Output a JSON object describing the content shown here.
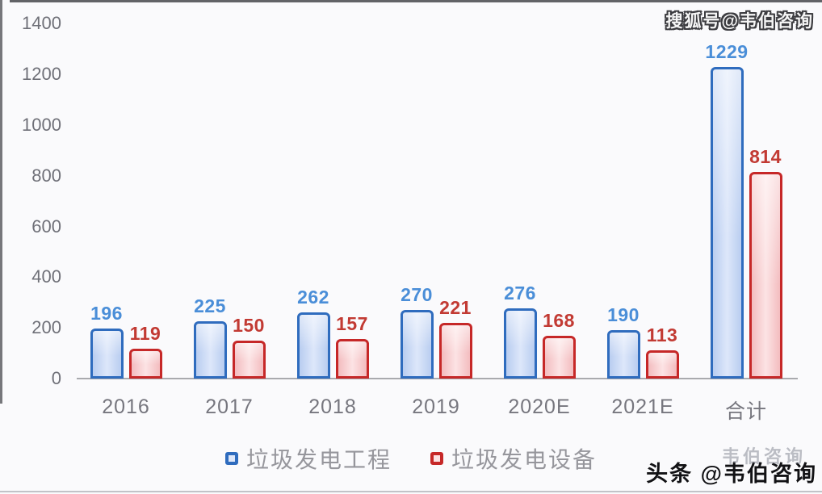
{
  "watermarks": {
    "top_right": "搜狐号@韦伯咨询",
    "bottom_right": "头条 @韦伯咨询",
    "bottom_right_ghost": "韦伯咨询"
  },
  "colors": {
    "series1_border": "#2f6cbe",
    "series1_fill_light": "#dde7fa",
    "series1_fill_dark": "#b9cdf0",
    "series1_label": "#4a8ed8",
    "series2_border": "#c62828",
    "series2_fill_light": "#fce3e4",
    "series2_fill_dark": "#f3bcbf",
    "series2_label": "#c23a33",
    "axis_text": "#6f7078",
    "legend_text": "#96969c",
    "baseline": "#a9aaae"
  },
  "chart_data": {
    "type": "bar",
    "title": "",
    "xlabel": "",
    "ylabel": "",
    "categories": [
      "2016",
      "2017",
      "2018",
      "2019",
      "2020E",
      "2021E",
      "合计"
    ],
    "series": [
      {
        "name": "垃圾发电工程",
        "color": "#2f6cbe",
        "values": [
          196,
          225,
          262,
          270,
          276,
          190,
          1229
        ]
      },
      {
        "name": "垃圾发电设备",
        "color": "#c62828",
        "values": [
          119,
          150,
          157,
          221,
          168,
          113,
          814
        ]
      }
    ],
    "ylim": [
      0,
      1400
    ],
    "ytick_step": 200,
    "yticks": [
      0,
      200,
      400,
      600,
      800,
      1000,
      1200,
      1400
    ],
    "grid": false,
    "legend_position": "bottom",
    "data_labels": true
  }
}
